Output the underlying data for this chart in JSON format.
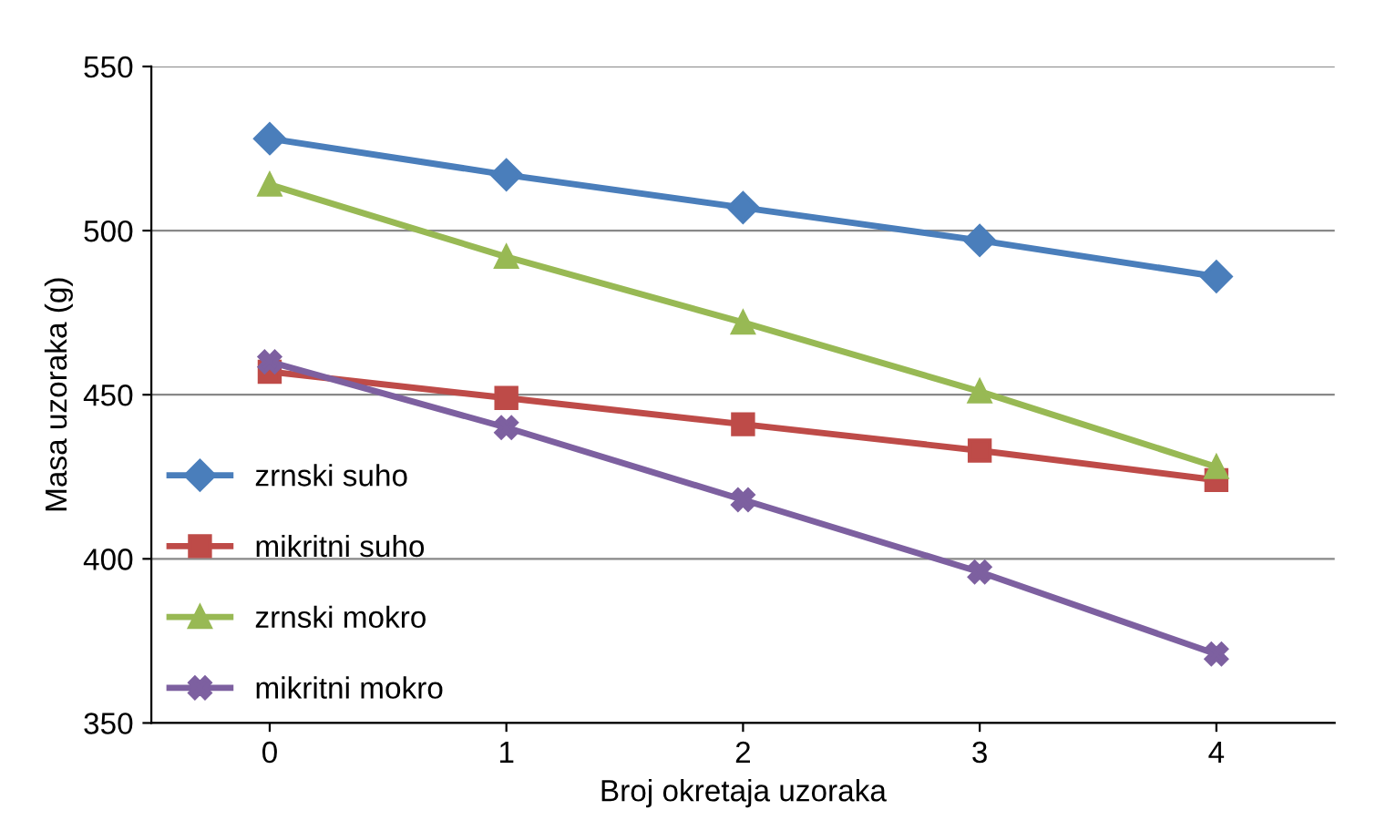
{
  "chart_data": {
    "type": "line",
    "xlabel": "Broj okretaja uzoraka",
    "ylabel": "Masa uzoraka (g)",
    "categories": [
      "0",
      "1",
      "2",
      "3",
      "4"
    ],
    "ylim": [
      350,
      550
    ],
    "yticks": [
      350,
      400,
      450,
      500,
      550
    ],
    "grid": "y",
    "legend": "lower left",
    "line_style": "solid",
    "series": [
      {
        "name": "zrnski suho",
        "color": "#4a7ebb",
        "marker": "diamond",
        "values": [
          528,
          517,
          507,
          497,
          486
        ]
      },
      {
        "name": "mikritni suho",
        "color": "#be4b48",
        "marker": "square",
        "values": [
          457,
          449,
          441,
          433,
          424
        ]
      },
      {
        "name": "zrnski mokro",
        "color": "#98b954",
        "marker": "triangle",
        "values": [
          514,
          492,
          472,
          451,
          428
        ]
      },
      {
        "name": "mikritni mokro",
        "color": "#7d60a0",
        "marker": "cross",
        "values": [
          460,
          440,
          418,
          396,
          371
        ]
      }
    ]
  }
}
